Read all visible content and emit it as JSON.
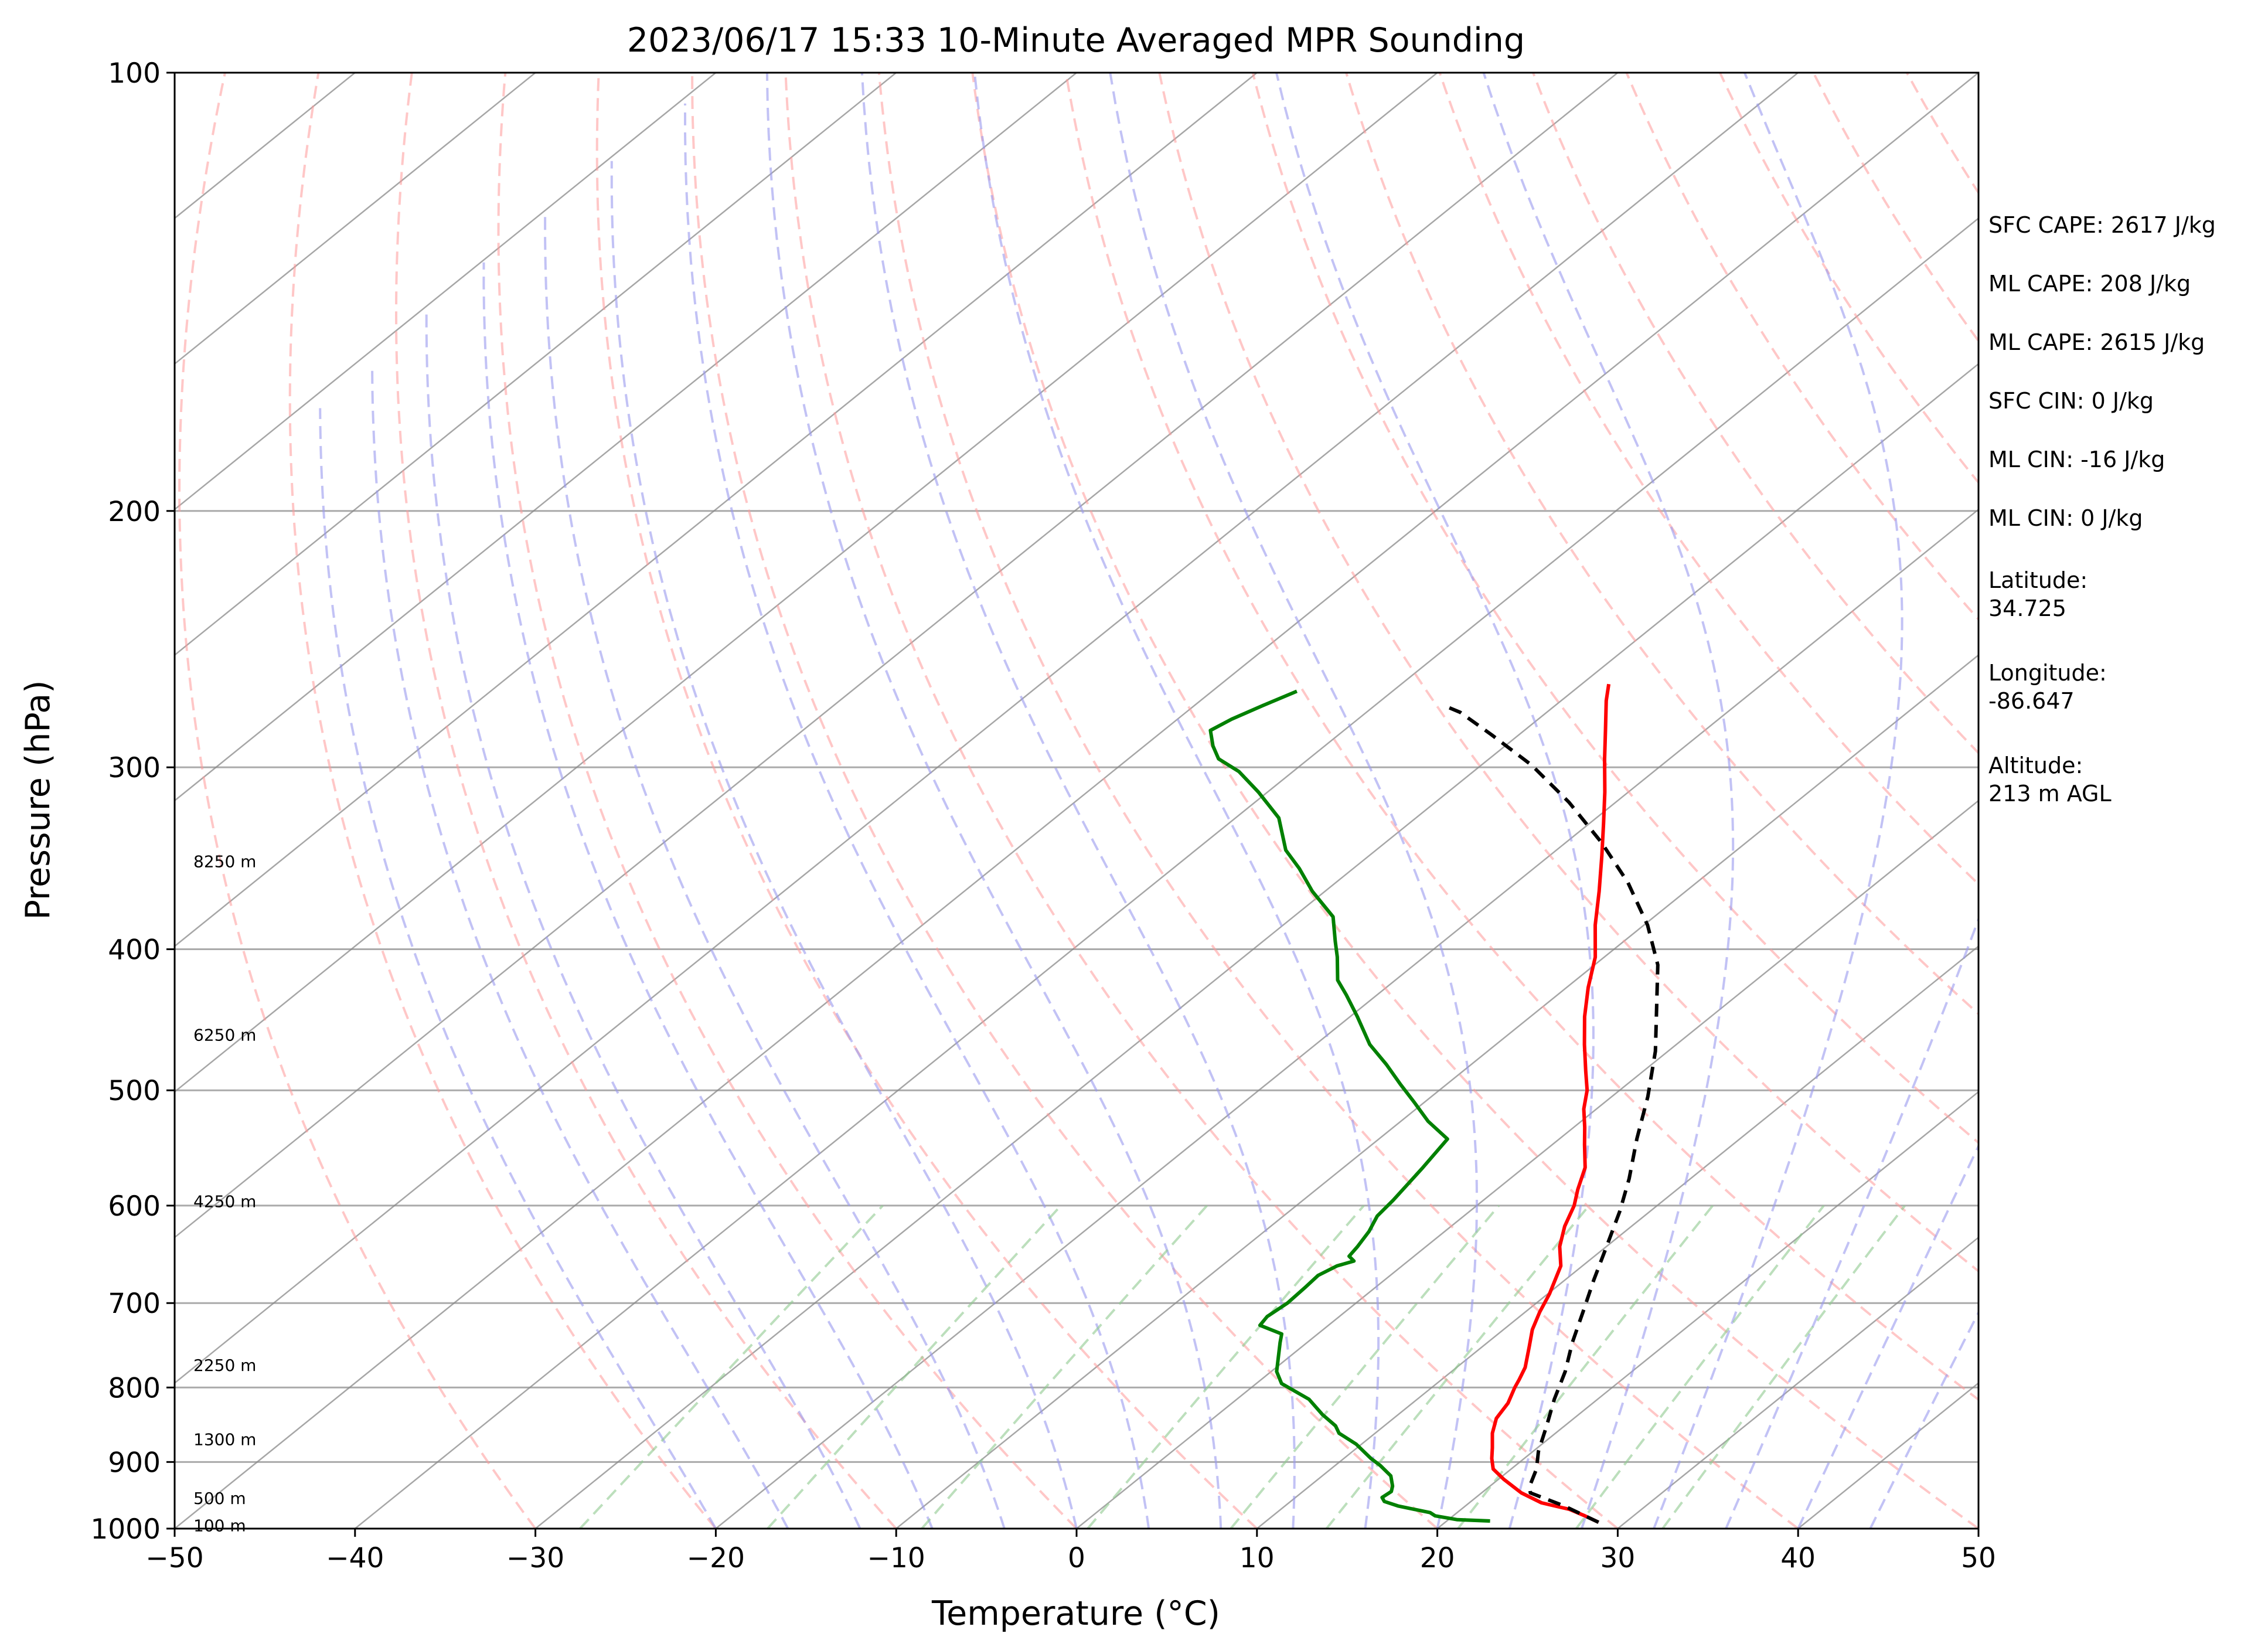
{
  "chart_data": {
    "type": "line",
    "title": "2023/06/17 15:33 10-Minute Averaged MPR Sounding",
    "xlabel": "Temperature (°C)",
    "ylabel": "Pressure (hPa)",
    "xlim": [
      -50,
      50
    ],
    "ylim": [
      1000,
      100
    ],
    "y_scale": "log",
    "skew": "skew-T",
    "grid": true,
    "x_ticks": [
      -50,
      -40,
      -30,
      -20,
      -10,
      0,
      10,
      20,
      30,
      40,
      50
    ],
    "x_tick_labels": [
      "−50",
      "−40",
      "−30",
      "−20",
      "−10",
      "0",
      "10",
      "20",
      "30",
      "40",
      "50"
    ],
    "y_ticks": [
      1000,
      900,
      800,
      700,
      600,
      500,
      400,
      300,
      200,
      100
    ],
    "y_tick_labels": [
      "1000",
      "900",
      "800",
      "700",
      "600",
      "500",
      "400",
      "300",
      "200",
      "100"
    ],
    "height_labels": [
      {
        "text": "100 m",
        "pressure": 995
      },
      {
        "text": "500 m",
        "pressure": 953
      },
      {
        "text": "1300 m",
        "pressure": 868
      },
      {
        "text": "2250 m",
        "pressure": 772
      },
      {
        "text": "4250 m",
        "pressure": 596
      },
      {
        "text": "6250 m",
        "pressure": 458
      },
      {
        "text": "8250 m",
        "pressure": 348
      }
    ],
    "series": [
      {
        "color": "#ff0000",
        "style": "solid",
        "points": [
          [
            28.5,
            990
          ],
          [
            27.3,
            980
          ],
          [
            26,
            970
          ],
          [
            24,
            960
          ],
          [
            22.2,
            945
          ],
          [
            20.3,
            925
          ],
          [
            19,
            910
          ],
          [
            18.2,
            895
          ],
          [
            17.5,
            880
          ],
          [
            16.5,
            860
          ],
          [
            15.7,
            840
          ],
          [
            15.3,
            820
          ],
          [
            14.6,
            800
          ],
          [
            14.3,
            790
          ],
          [
            13.8,
            775
          ],
          [
            12.6,
            750
          ],
          [
            11.6,
            730
          ],
          [
            10.8,
            710
          ],
          [
            10.1,
            690
          ],
          [
            8.8,
            660
          ],
          [
            7.4,
            640
          ],
          [
            6.3,
            620
          ],
          [
            5.4,
            600
          ],
          [
            4.5,
            585
          ],
          [
            3.4,
            565
          ],
          [
            1.8,
            545
          ],
          [
            0.6,
            530
          ],
          [
            -0.7,
            515
          ],
          [
            -1.8,
            500
          ],
          [
            -3.2,
            485
          ],
          [
            -5.1,
            465
          ],
          [
            -7,
            445
          ],
          [
            -8.8,
            425
          ],
          [
            -10.5,
            405
          ],
          [
            -12.7,
            385
          ],
          [
            -14.8,
            365
          ],
          [
            -17.1,
            345
          ],
          [
            -19.2,
            328
          ],
          [
            -21.3,
            312
          ],
          [
            -23.6,
            296
          ],
          [
            -25.5,
            283
          ],
          [
            -27.5,
            270
          ],
          [
            -28.5,
            263
          ]
        ]
      },
      {
        "color": "#008000",
        "style": "solid",
        "points": [
          [
            22.4,
            988
          ],
          [
            20.5,
            986
          ],
          [
            19,
            980
          ],
          [
            18.5,
            975
          ],
          [
            16.3,
            965
          ],
          [
            15.2,
            958
          ],
          [
            14.8,
            952
          ],
          [
            14.9,
            943
          ],
          [
            14.6,
            935
          ],
          [
            13.8,
            920
          ],
          [
            12.5,
            905
          ],
          [
            11.5,
            895
          ],
          [
            9.7,
            875
          ],
          [
            8,
            860
          ],
          [
            7.3,
            850
          ],
          [
            5.8,
            835
          ],
          [
            4,
            815
          ],
          [
            1.4,
            795
          ],
          [
            0.3,
            780
          ],
          [
            -1.5,
            745
          ],
          [
            -2,
            735
          ],
          [
            -3.8,
            725
          ],
          [
            -4,
            715
          ],
          [
            -3.8,
            700
          ],
          [
            -3.9,
            682
          ],
          [
            -4,
            670
          ],
          [
            -3.6,
            660
          ],
          [
            -3,
            655
          ],
          [
            -3.6,
            650
          ],
          [
            -3.8,
            640
          ],
          [
            -4.2,
            625
          ],
          [
            -4.8,
            610
          ],
          [
            -5,
            595
          ],
          [
            -5.6,
            565
          ],
          [
            -6.2,
            540
          ],
          [
            -8.5,
            525
          ],
          [
            -10.5,
            510
          ],
          [
            -12.6,
            495
          ],
          [
            -14.7,
            480
          ],
          [
            -17,
            465
          ],
          [
            -19.6,
            445
          ],
          [
            -21.7,
            430
          ],
          [
            -23.2,
            420
          ],
          [
            -24.8,
            405
          ],
          [
            -26,
            395
          ],
          [
            -27.8,
            380
          ],
          [
            -30.7,
            365
          ],
          [
            -33,
            352
          ],
          [
            -35,
            342
          ],
          [
            -37.6,
            325
          ],
          [
            -40.5,
            312
          ],
          [
            -43,
            302
          ],
          [
            -45,
            296
          ],
          [
            -46.2,
            290
          ],
          [
            -47.4,
            283
          ],
          [
            -47,
            278
          ],
          [
            -46.2,
            272
          ],
          [
            -45.3,
            266
          ]
        ]
      },
      {
        "color": "#000000",
        "style": "dashed",
        "points": [
          [
            28.5,
            990
          ],
          [
            25.5,
            965
          ],
          [
            22.7,
            945
          ],
          [
            22.2,
            935
          ],
          [
            21.4,
            910
          ],
          [
            20.3,
            885
          ],
          [
            19,
            850
          ],
          [
            17.6,
            815
          ],
          [
            16.3,
            780
          ],
          [
            14.7,
            745
          ],
          [
            13.2,
            710
          ],
          [
            11.6,
            675
          ],
          [
            10,
            640
          ],
          [
            8.3,
            605
          ],
          [
            6.6,
            575
          ],
          [
            4.3,
            540
          ],
          [
            2,
            505
          ],
          [
            -0.7,
            470
          ],
          [
            -3.5,
            440
          ],
          [
            -6.5,
            410
          ],
          [
            -9.8,
            385
          ],
          [
            -13.8,
            360
          ],
          [
            -18,
            338
          ],
          [
            -22.6,
            317
          ],
          [
            -27.2,
            299
          ],
          [
            -31.5,
            285
          ],
          [
            -34.8,
            275
          ],
          [
            -36.2,
            272
          ]
        ]
      }
    ]
  },
  "side_panel": {
    "sfc_cape": "SFC CAPE: 2617 J/kg",
    "ml_cape_1": "ML CAPE: 208 J/kg",
    "ml_cape_2": "ML CAPE: 2615 J/kg",
    "sfc_cin": "SFC CIN: 0 J/kg",
    "ml_cin_1": "ML CIN: -16 J/kg",
    "ml_cin_2": "ML CIN: 0 J/kg",
    "latitude_label": "Latitude:",
    "latitude_value": "34.725",
    "longitude_label": "Longitude:",
    "longitude_value": "-86.647",
    "altitude_label": "Altitude:",
    "altitude_value": "213 m AGL"
  },
  "colors": {
    "temperature": "#ff0000",
    "dewpoint": "#008000",
    "parcel": "#000000",
    "dry_adiabat": "#ff9999",
    "moist_adiabat": "#9999ee",
    "mixing_ratio": "#8fc98f",
    "isotherm": "#888888",
    "isobar": "#aaaaaa"
  }
}
